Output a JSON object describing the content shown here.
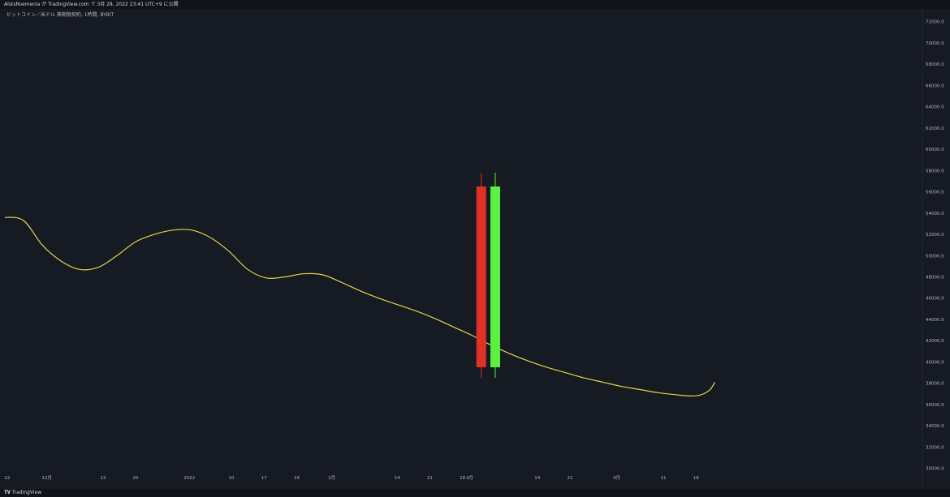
{
  "header": {
    "author": "AlstsRoemenia",
    "publisher_text": "が TradingView.com で 3月 28, 2022 23:41 UTC+9 に公開"
  },
  "symbol_info": "ビットコイン／米ドル 無期限契約, 1時間, BYBIT",
  "footer": {
    "brand": "TradingView",
    "logo_icon": "tradingview-logo-icon"
  },
  "colors": {
    "background": "#161a23",
    "line": "#e6d14a",
    "bear_candle": "#e03127",
    "bull_candle": "#5cf040",
    "axis_text": "#b2b5be"
  },
  "chart_data": {
    "type": "line",
    "title": "",
    "xlabel": "",
    "ylabel": "",
    "ylim": [
      28900,
      73200
    ],
    "y_ticks": [
      "72000.0",
      "70000.0",
      "68000.0",
      "66000.0",
      "64000.0",
      "62000.0",
      "60000.0",
      "58000.0",
      "56000.0",
      "54000.0",
      "52000.0",
      "50000.0",
      "48000.0",
      "46000.0",
      "44000.0",
      "42000.0",
      "40000.0",
      "38000.0",
      "36000.0",
      "34000.0",
      "32000.0",
      "30000.0"
    ],
    "x_ticks": [
      {
        "label": "22",
        "i": 0.5
      },
      {
        "label": "12月",
        "i": 9
      },
      {
        "label": "13",
        "i": 21
      },
      {
        "label": "20",
        "i": 28
      },
      {
        "label": "2022",
        "i": 39.5
      },
      {
        "label": "10",
        "i": 48.5
      },
      {
        "label": "17",
        "i": 55.5
      },
      {
        "label": "24",
        "i": 62.5
      },
      {
        "label": "2月",
        "i": 70
      },
      {
        "label": "14",
        "i": 84
      },
      {
        "label": "21",
        "i": 91
      },
      {
        "label": "28",
        "i": 98
      },
      {
        "label": "3月",
        "i": 99.5
      },
      {
        "label": "14",
        "i": 114
      },
      {
        "label": "21",
        "i": 121
      },
      {
        "label": "4月",
        "i": 131
      },
      {
        "label": "11",
        "i": 141
      },
      {
        "label": "18",
        "i": 148
      }
    ],
    "series": [
      {
        "type": "line",
        "points": [
          [
            0,
            53600
          ],
          [
            4,
            53300
          ],
          [
            8,
            51000
          ],
          [
            12,
            49500
          ],
          [
            16,
            48700
          ],
          [
            20,
            48900
          ],
          [
            24,
            50000
          ],
          [
            28,
            51300
          ],
          [
            32,
            52000
          ],
          [
            36,
            52400
          ],
          [
            40,
            52400
          ],
          [
            44,
            51700
          ],
          [
            48,
            50400
          ],
          [
            52,
            48700
          ],
          [
            56,
            47900
          ],
          [
            60,
            48000
          ],
          [
            64,
            48300
          ],
          [
            68,
            48200
          ],
          [
            72,
            47500
          ],
          [
            76,
            46700
          ],
          [
            80,
            46000
          ],
          [
            84,
            45400
          ],
          [
            88,
            44800
          ],
          [
            92,
            44100
          ],
          [
            96,
            43300
          ],
          [
            100,
            42500
          ],
          [
            104,
            41600
          ],
          [
            108,
            40800
          ],
          [
            112,
            40100
          ],
          [
            116,
            39500
          ],
          [
            120,
            39000
          ],
          [
            124,
            38500
          ],
          [
            128,
            38100
          ],
          [
            132,
            37700
          ],
          [
            136,
            37400
          ],
          [
            140,
            37100
          ],
          [
            144,
            36900
          ],
          [
            147,
            36800
          ],
          [
            149,
            36900
          ],
          [
            151,
            37400
          ],
          [
            152,
            38100
          ]
        ]
      },
      {
        "type": "candlestick",
        "candles": [
          {
            "i": 102,
            "open": 56500,
            "high": 57800,
            "low": 38500,
            "close": 39500
          },
          {
            "i": 105,
            "open": 39500,
            "high": 57800,
            "low": 38500,
            "close": 56500
          }
        ]
      }
    ],
    "x_range": [
      0,
      197.5
    ],
    "grid": false,
    "legend": "none"
  }
}
